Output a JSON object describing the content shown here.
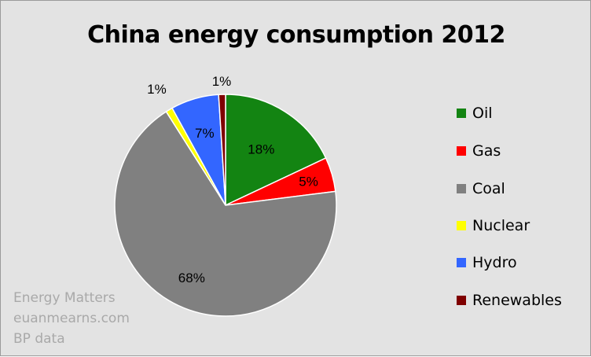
{
  "chart_data": {
    "type": "pie",
    "title": "China energy consumption 2012",
    "series": [
      {
        "name": "Oil",
        "value": 18,
        "label": "18%",
        "color": "#138412"
      },
      {
        "name": "Gas",
        "value": 5,
        "label": "5%",
        "color": "#ff0000"
      },
      {
        "name": "Coal",
        "value": 68,
        "label": "68%",
        "color": "#808080"
      },
      {
        "name": "Nuclear",
        "value": 1,
        "label": "1%",
        "color": "#ffff00"
      },
      {
        "name": "Hydro",
        "value": 7,
        "label": "7%",
        "color": "#3366ff"
      },
      {
        "name": "Renewables",
        "value": 1,
        "label": "1%",
        "color": "#7f0000"
      }
    ],
    "legend_position": "right"
  },
  "credits": [
    "Energy Matters",
    "euanmearns.com",
    "BP data"
  ]
}
